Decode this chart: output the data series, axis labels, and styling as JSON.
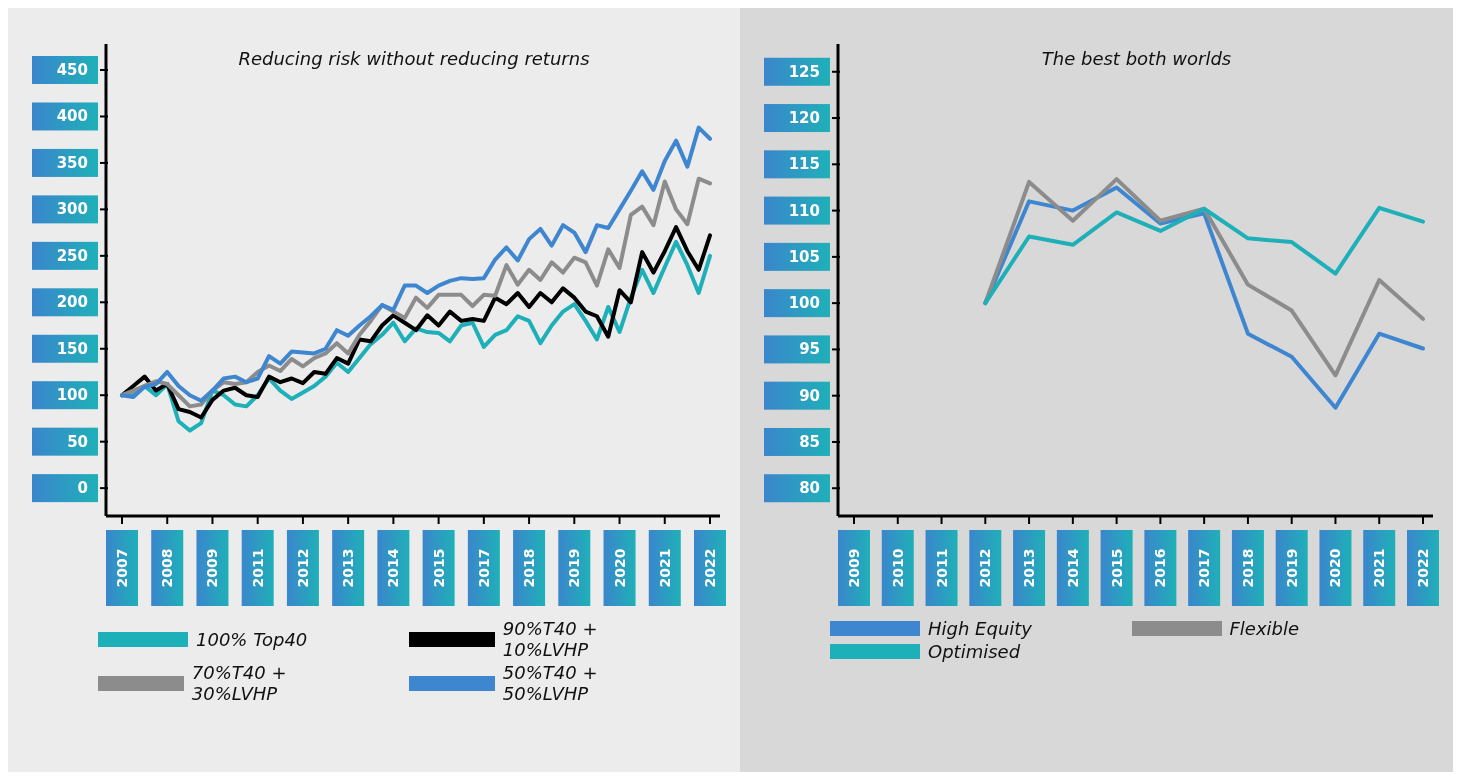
{
  "chart_data": [
    {
      "type": "line",
      "title": "Reducing risk without reducing returns",
      "categories": [
        "2007",
        null,
        null,
        null,
        "2008",
        null,
        null,
        null,
        "2009",
        null,
        null,
        null,
        "2011",
        null,
        null,
        null,
        "2012",
        null,
        null,
        null,
        "2013",
        null,
        null,
        null,
        "2014",
        null,
        null,
        null,
        "2015",
        null,
        null,
        null,
        "2017",
        null,
        null,
        null,
        "2018",
        null,
        null,
        null,
        "2019",
        null,
        null,
        null,
        "2020",
        null,
        null,
        null,
        "2021",
        null,
        null,
        null,
        "2022"
      ],
      "series": [
        {
          "name": "100% Top40",
          "color": "#1eb0b8",
          "values": [
            100,
            100,
            110,
            100,
            112,
            72,
            62,
            70,
            105,
            100,
            90,
            88,
            100,
            118,
            105,
            96,
            103,
            110,
            120,
            135,
            125,
            140,
            155,
            165,
            178,
            158,
            172,
            168,
            167,
            158,
            175,
            178,
            152,
            165,
            170,
            185,
            180,
            156,
            175,
            190,
            198,
            180,
            160,
            195,
            168,
            205,
            235,
            210,
            238,
            265,
            240,
            210,
            250
          ]
        },
        {
          "name": "90%T40 + 10%LVHP",
          "color": "#000000",
          "values": [
            100,
            110,
            120,
            105,
            112,
            85,
            82,
            76,
            95,
            105,
            108,
            100,
            98,
            120,
            114,
            118,
            113,
            125,
            123,
            140,
            134,
            160,
            158,
            175,
            186,
            178,
            170,
            186,
            175,
            190,
            180,
            182,
            180,
            205,
            198,
            210,
            195,
            210,
            200,
            215,
            205,
            190,
            185,
            163,
            213,
            200,
            254,
            232,
            255,
            281,
            255,
            235,
            272
          ]
        },
        {
          "name": "70%T40 + 30%LVHP",
          "color": "#8c8c8c",
          "values": [
            100,
            105,
            110,
            115,
            112,
            100,
            88,
            90,
            105,
            114,
            112,
            114,
            125,
            132,
            126,
            139,
            131,
            140,
            145,
            156,
            145,
            165,
            180,
            197,
            190,
            183,
            205,
            194,
            208,
            208,
            208,
            196,
            208,
            207,
            240,
            219,
            235,
            224,
            243,
            232,
            248,
            243,
            218,
            257,
            237,
            294,
            303,
            283,
            330,
            300,
            284,
            333,
            328
          ]
        },
        {
          "name": "50%T40 + 50%LVHP",
          "color": "#3f86d0",
          "values": [
            100,
            98,
            109,
            112,
            125,
            110,
            100,
            94,
            105,
            118,
            120,
            114,
            118,
            142,
            134,
            147,
            146,
            145,
            150,
            170,
            164,
            175,
            185,
            197,
            192,
            218,
            218,
            210,
            218,
            223,
            226,
            225,
            226,
            246,
            259,
            245,
            268,
            279,
            261,
            283,
            275,
            254,
            283,
            280,
            300,
            320,
            341,
            321,
            352,
            374,
            346,
            388,
            376
          ]
        }
      ],
      "ylim": [
        -30,
        478
      ],
      "yticks": [
        0,
        50,
        100,
        150,
        200,
        250,
        300,
        350,
        400,
        450
      ],
      "legend": "bottom",
      "marker": "none",
      "grid": false
    },
    {
      "type": "line",
      "title": "The best both worlds",
      "categories": [
        "2009",
        "2010",
        "2011",
        "2012",
        "2013",
        "2014",
        "2015",
        "2016",
        "2017",
        "2018",
        "2019",
        "2020",
        "2021",
        "2022"
      ],
      "series": [
        {
          "name": "High Equity",
          "color": "#3f86d0",
          "values": [
            null,
            null,
            null,
            100,
            111,
            110,
            112.5,
            108.6,
            109.7,
            96.7,
            94.2,
            88.7,
            96.7,
            95.1
          ]
        },
        {
          "name": "Flexible",
          "color": "#8c8c8c",
          "values": [
            null,
            null,
            null,
            100,
            113.1,
            108.9,
            113.4,
            108.9,
            110.2,
            102,
            99.2,
            92.2,
            102.5,
            98.3
          ]
        },
        {
          "name": "Optimised",
          "color": "#1eb0b8",
          "values": [
            null,
            null,
            null,
            100,
            107.2,
            106.3,
            109.8,
            107.8,
            110.2,
            107,
            106.6,
            103.2,
            110.3,
            108.8
          ]
        }
      ],
      "ylim": [
        77,
        128
      ],
      "yticks": [
        80,
        85,
        90,
        95,
        100,
        105,
        110,
        115,
        120,
        125
      ],
      "legend": "bottom",
      "marker": "none",
      "grid": false
    }
  ]
}
